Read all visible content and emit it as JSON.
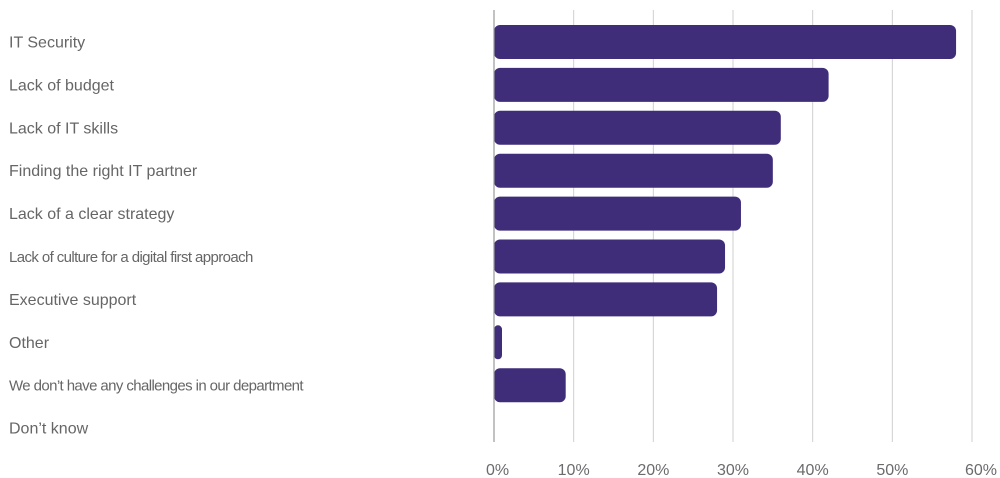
{
  "chart_data": {
    "type": "bar",
    "orientation": "horizontal",
    "categories": [
      "IT Security",
      "Lack of budget",
      "Lack of IT skills",
      "Finding the right IT partner",
      "Lack of a clear strategy",
      "Lack of culture for a digital first approach",
      "Executive support",
      "Other",
      "We don’t have any challenges in our department",
      "Don’t know"
    ],
    "values": [
      58,
      42,
      36,
      35,
      31,
      29,
      28,
      1,
      9,
      0
    ],
    "unit": "%",
    "xlim": [
      0,
      60
    ],
    "xticks": [
      0,
      10,
      20,
      30,
      40,
      50,
      60
    ],
    "xtick_labels": [
      "0%",
      "10%",
      "20%",
      "30%",
      "40%",
      "50%",
      "60%"
    ],
    "grid": true,
    "title": "",
    "xlabel": "",
    "ylabel": "",
    "bar_color": "#3f2d7a"
  }
}
